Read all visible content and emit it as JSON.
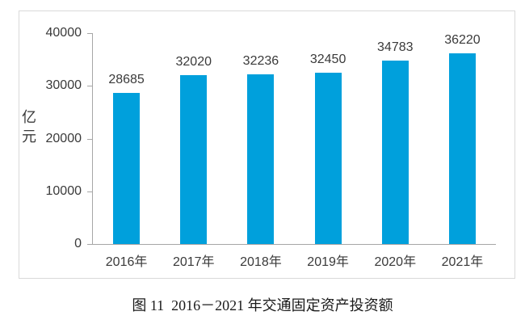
{
  "chart_data": {
    "type": "bar",
    "title": "图 11  2016－2021 年交通固定资产投资额",
    "ylabel": "亿元",
    "categories": [
      "2016年",
      "2017年",
      "2018年",
      "2019年",
      "2020年",
      "2021年"
    ],
    "values": [
      28685,
      32020,
      32236,
      32450,
      34783,
      36220
    ],
    "value_labels": [
      "28685",
      "32020",
      "32236",
      "32450",
      "34783",
      "36220"
    ],
    "ylim": [
      0,
      40000
    ],
    "yticks": [
      0,
      10000,
      20000,
      30000,
      40000
    ],
    "ytick_labels": [
      "0",
      "10000",
      "20000",
      "30000",
      "40000"
    ],
    "grid": false,
    "legend": "none",
    "bar_color": "#00A0DC",
    "axis_color": "#A6A6A6",
    "frame_border_color": "#D9D9D9",
    "text_color": "#3A3A3A"
  }
}
